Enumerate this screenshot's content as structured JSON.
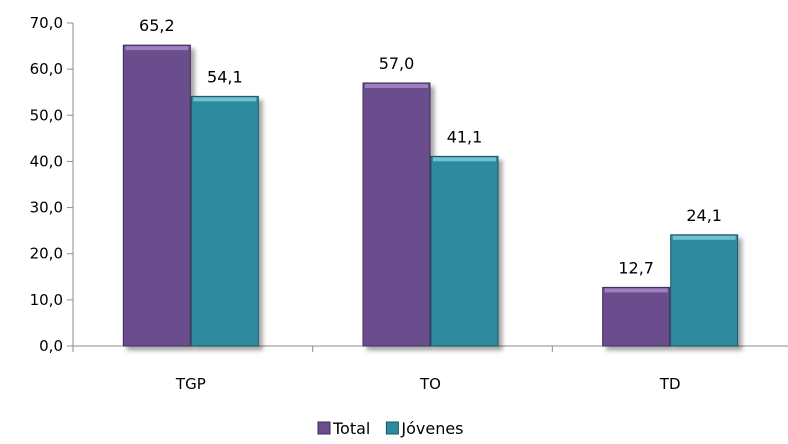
{
  "chart_data": {
    "type": "bar",
    "categories": [
      "TGP",
      "TO",
      "TD"
    ],
    "series": [
      {
        "name": "Total",
        "values": [
          65.2,
          57.0,
          12.7
        ],
        "labels": [
          "65,2",
          "57,0",
          "12,7"
        ],
        "color": "#6b4e8c",
        "edge": "#3f2a5a",
        "highlight": "#a58bc4"
      },
      {
        "name": "Jóvenes",
        "values": [
          54.1,
          41.1,
          24.1
        ],
        "labels": [
          "54,1",
          "41,1",
          "24,1"
        ],
        "color": "#2f8a9e",
        "edge": "#1a5563",
        "highlight": "#7fc9d8"
      }
    ],
    "ylim": [
      0,
      70
    ],
    "yticks": [
      0,
      10,
      20,
      30,
      40,
      50,
      60,
      70
    ],
    "ytick_labels": [
      "0,0",
      "10,0",
      "20,0",
      "30,0",
      "40,0",
      "50,0",
      "60,0",
      "70,0"
    ],
    "xlabel": "",
    "ylabel": "",
    "grid": false,
    "legend": "bottom-center",
    "axis_color": "#8c8c8c"
  }
}
